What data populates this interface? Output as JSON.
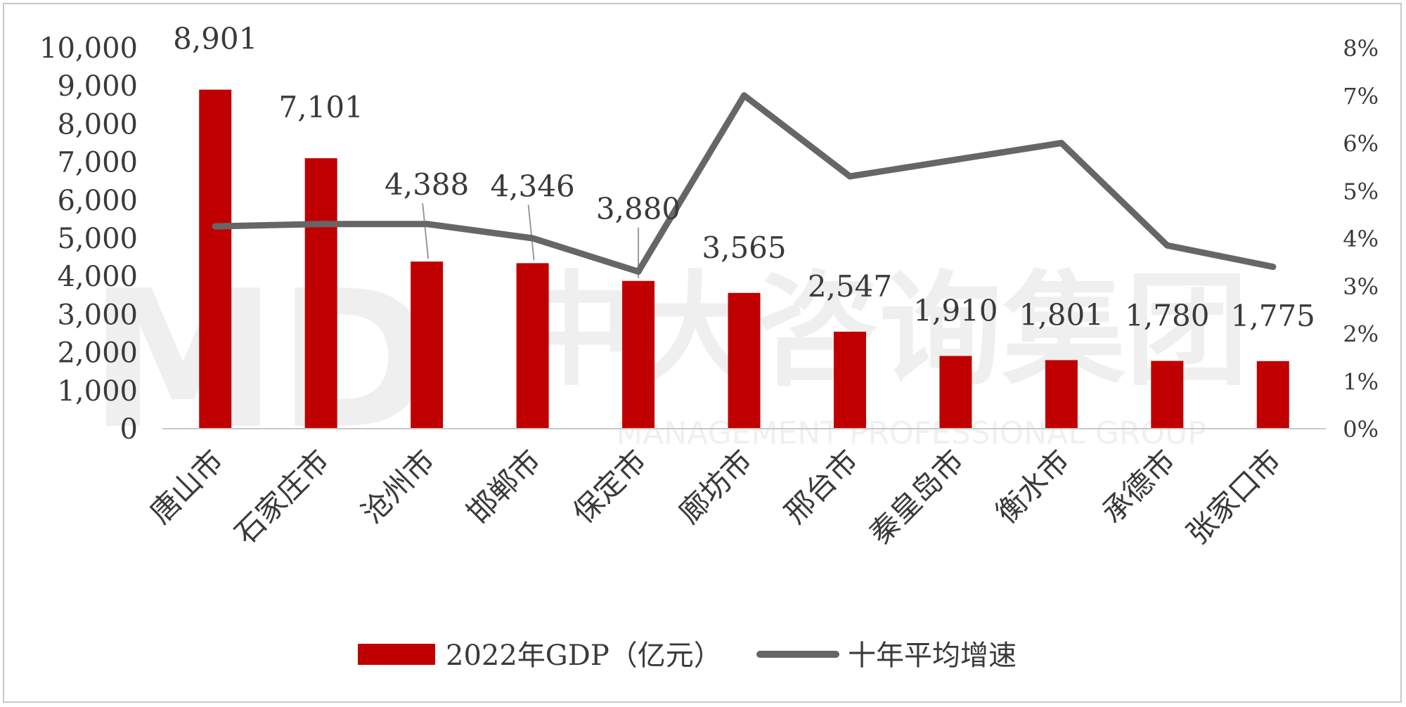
{
  "watermark": {
    "logo": "MD",
    "text": "中大咨询集团",
    "subtext": "MANAGEMENT PROFESSIONAL GROUP"
  },
  "chart_data": {
    "type": "bar",
    "categories": [
      "唐山市",
      "石家庄市",
      "沧州市",
      "邯郸市",
      "保定市",
      "廊坊市",
      "邢台市",
      "秦皇岛市",
      "衡水市",
      "承德市",
      "张家口市"
    ],
    "series": [
      {
        "name": "2022年GDP（亿元）",
        "type": "bar",
        "axis": "left",
        "color": "#c00000",
        "values": [
          8901,
          7101,
          4388,
          4346,
          3880,
          3565,
          2547,
          1910,
          1801,
          1780,
          1775
        ],
        "labels": [
          "8,901",
          "7,101",
          "4,388",
          "4,346",
          "3,880",
          "3,565",
          "2,547",
          "1,910",
          "1,801",
          "1,780",
          "1,775"
        ]
      },
      {
        "name": "十年平均增速",
        "type": "line",
        "axis": "right",
        "color": "#666666",
        "values": [
          4.25,
          4.3,
          4.3,
          4.0,
          3.3,
          7.0,
          5.3,
          5.65,
          6.0,
          3.85,
          3.4
        ]
      }
    ],
    "y_left": {
      "min": 0,
      "max": 10000,
      "ticks": [
        "0",
        "1,000",
        "2,000",
        "3,000",
        "4,000",
        "5,000",
        "6,000",
        "7,000",
        "8,000",
        "9,000",
        "10,000"
      ]
    },
    "y_right": {
      "min": 0,
      "max": 8,
      "ticks": [
        "0%",
        "1%",
        "2%",
        "3%",
        "4%",
        "5%",
        "6%",
        "7%",
        "8%"
      ]
    },
    "grid": false,
    "legend": "bottom"
  }
}
